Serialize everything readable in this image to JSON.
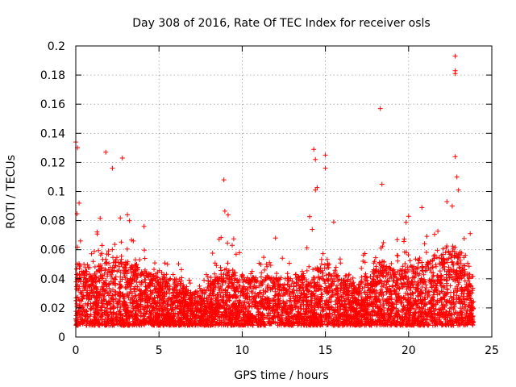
{
  "chart_data": {
    "type": "scatter",
    "title": "Day 308 of 2016, Rate Of TEC Index for receiver osls",
    "xlabel": "GPS time / hours",
    "ylabel": "ROTI / TECUs",
    "xlim": [
      0,
      25
    ],
    "ylim": [
      0,
      0.2
    ],
    "xticks": [
      0,
      5,
      10,
      15,
      20,
      25
    ],
    "xtick_labels": [
      "0",
      "5",
      "10",
      "15",
      "20",
      "25"
    ],
    "yticks": [
      0,
      0.02,
      0.04,
      0.06,
      0.08,
      0.1,
      0.12,
      0.14,
      0.16,
      0.18,
      0.2
    ],
    "ytick_labels": [
      "0",
      "0.02",
      "0.04",
      "0.06",
      "0.08",
      "0.1",
      "0.12",
      "0.14",
      "0.16",
      "0.18",
      "0.2"
    ],
    "grid": true,
    "marker": "+",
    "color": "#ff0000",
    "data_range_x": [
      0,
      23.9
    ],
    "notable_points": [
      {
        "x": 0.0,
        "y": 0.134
      },
      {
        "x": 0.1,
        "y": 0.13
      },
      {
        "x": 0.2,
        "y": 0.092
      },
      {
        "x": 1.8,
        "y": 0.127
      },
      {
        "x": 2.2,
        "y": 0.116
      },
      {
        "x": 2.8,
        "y": 0.123
      },
      {
        "x": 3.1,
        "y": 0.084
      },
      {
        "x": 4.1,
        "y": 0.076
      },
      {
        "x": 8.9,
        "y": 0.108
      },
      {
        "x": 9.4,
        "y": 0.063
      },
      {
        "x": 12.0,
        "y": 0.068
      },
      {
        "x": 14.3,
        "y": 0.129
      },
      {
        "x": 14.4,
        "y": 0.122
      },
      {
        "x": 14.4,
        "y": 0.101
      },
      {
        "x": 15.0,
        "y": 0.125
      },
      {
        "x": 15.0,
        "y": 0.116
      },
      {
        "x": 15.5,
        "y": 0.079
      },
      {
        "x": 18.3,
        "y": 0.157
      },
      {
        "x": 18.4,
        "y": 0.105
      },
      {
        "x": 20.0,
        "y": 0.083
      },
      {
        "x": 20.8,
        "y": 0.089
      },
      {
        "x": 22.3,
        "y": 0.093
      },
      {
        "x": 22.8,
        "y": 0.193
      },
      {
        "x": 22.8,
        "y": 0.183
      },
      {
        "x": 22.8,
        "y": 0.181
      },
      {
        "x": 22.8,
        "y": 0.124
      },
      {
        "x": 22.9,
        "y": 0.11
      },
      {
        "x": 23.0,
        "y": 0.101
      },
      {
        "x": 23.7,
        "y": 0.071
      }
    ],
    "activity_envelope": [
      {
        "x": 0,
        "peak": 0.09,
        "typical_max": 0.05
      },
      {
        "x": 1,
        "peak": 0.06,
        "typical_max": 0.04
      },
      {
        "x": 1.8,
        "peak": 0.105,
        "typical_max": 0.055
      },
      {
        "x": 2.3,
        "peak": 0.112,
        "typical_max": 0.05
      },
      {
        "x": 3,
        "peak": 0.085,
        "typical_max": 0.05
      },
      {
        "x": 4,
        "peak": 0.075,
        "typical_max": 0.045
      },
      {
        "x": 5,
        "peak": 0.052,
        "typical_max": 0.04
      },
      {
        "x": 6,
        "peak": 0.058,
        "typical_max": 0.038
      },
      {
        "x": 7,
        "peak": 0.04,
        "typical_max": 0.028
      },
      {
        "x": 8,
        "peak": 0.062,
        "typical_max": 0.035
      },
      {
        "x": 9,
        "peak": 0.1,
        "typical_max": 0.045
      },
      {
        "x": 10,
        "peak": 0.05,
        "typical_max": 0.04
      },
      {
        "x": 11,
        "peak": 0.055,
        "typical_max": 0.04
      },
      {
        "x": 12,
        "peak": 0.067,
        "typical_max": 0.04
      },
      {
        "x": 13,
        "peak": 0.05,
        "typical_max": 0.038
      },
      {
        "x": 14.3,
        "peak": 0.115,
        "typical_max": 0.045
      },
      {
        "x": 15,
        "peak": 0.08,
        "typical_max": 0.05
      },
      {
        "x": 16,
        "peak": 0.06,
        "typical_max": 0.04
      },
      {
        "x": 17,
        "peak": 0.045,
        "typical_max": 0.035
      },
      {
        "x": 18.3,
        "peak": 0.1,
        "typical_max": 0.05
      },
      {
        "x": 19,
        "peak": 0.065,
        "typical_max": 0.045
      },
      {
        "x": 20,
        "peak": 0.082,
        "typical_max": 0.045
      },
      {
        "x": 21,
        "peak": 0.07,
        "typical_max": 0.05
      },
      {
        "x": 22,
        "peak": 0.085,
        "typical_max": 0.055
      },
      {
        "x": 22.8,
        "peak": 0.1,
        "typical_max": 0.06
      },
      {
        "x": 23.5,
        "peak": 0.07,
        "typical_max": 0.045
      },
      {
        "x": 23.9,
        "peak": 0.04,
        "typical_max": 0.03
      }
    ]
  }
}
